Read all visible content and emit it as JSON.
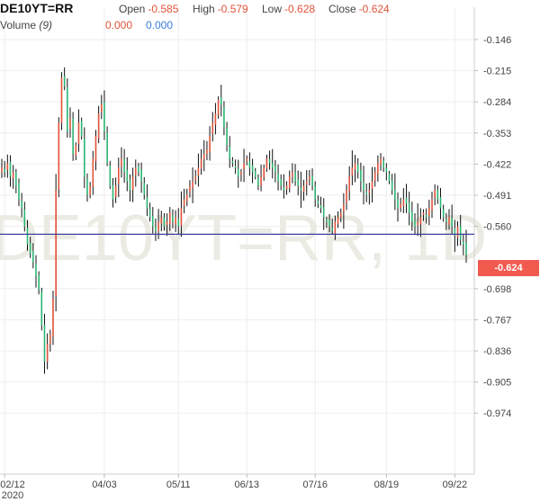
{
  "header": {
    "symbol": "DE10YT=RR",
    "open_label": "Open",
    "open_value": "-0.585",
    "high_label": "High",
    "high_value": "-0.579",
    "low_label": "Low",
    "low_value": "-0.628",
    "close_label": "Close",
    "close_value": "-0.624",
    "volume_label": "Volume",
    "volume_period": "(9)",
    "volume_value_1": "0.000",
    "volume_value_2": "0.000"
  },
  "watermark": "DE10YT=RR, 1D",
  "last_price_label": "-0.624",
  "colors": {
    "up": "#2bb673",
    "down": "#e0533a",
    "bar": "#111111",
    "last_line": "#3c3fa0",
    "tag": "#f05a4f"
  },
  "chart_data": {
    "type": "ohlc",
    "title": "",
    "xlabel": "",
    "ylabel": "",
    "y_ticks": [
      "-0.146",
      "-0.215",
      "-0.284",
      "-0.353",
      "-0.422",
      "-0.491",
      "-0.560",
      "-0.698",
      "-0.767",
      "-0.836",
      "-0.905",
      "-0.974"
    ],
    "ylim": [
      -1.035,
      -0.118
    ],
    "x_ticks": [
      {
        "label": "02/12",
        "sub": "2020",
        "index": 1
      },
      {
        "label": "04/03",
        "index": 36
      },
      {
        "label": "05/11",
        "index": 62
      },
      {
        "label": "06/13",
        "index": 86
      },
      {
        "label": "07/16",
        "index": 110
      },
      {
        "label": "08/19",
        "index": 135
      },
      {
        "label": "09/22",
        "index": 159
      }
    ],
    "last_price": -0.624,
    "closes": [
      -0.43,
      -0.44,
      -0.42,
      -0.45,
      -0.44,
      -0.47,
      -0.5,
      -0.52,
      -0.56,
      -0.6,
      -0.62,
      -0.64,
      -0.67,
      -0.7,
      -0.78,
      -0.86,
      -0.82,
      -0.8,
      -0.72,
      -0.48,
      -0.33,
      -0.23,
      -0.25,
      -0.35,
      -0.32,
      -0.4,
      -0.38,
      -0.33,
      -0.36,
      -0.45,
      -0.49,
      -0.47,
      -0.41,
      -0.36,
      -0.31,
      -0.29,
      -0.35,
      -0.42,
      -0.47,
      -0.5,
      -0.47,
      -0.43,
      -0.41,
      -0.44,
      -0.46,
      -0.48,
      -0.45,
      -0.43,
      -0.44,
      -0.46,
      -0.49,
      -0.52,
      -0.54,
      -0.56,
      -0.57,
      -0.55,
      -0.54,
      -0.56,
      -0.55,
      -0.53,
      -0.55,
      -0.54,
      -0.56,
      -0.52,
      -0.5,
      -0.49,
      -0.47,
      -0.46,
      -0.45,
      -0.43,
      -0.41,
      -0.4,
      -0.39,
      -0.36,
      -0.33,
      -0.31,
      -0.28,
      -0.29,
      -0.34,
      -0.38,
      -0.41,
      -0.42,
      -0.43,
      -0.45,
      -0.44,
      -0.42,
      -0.41,
      -0.43,
      -0.44,
      -0.45,
      -0.47,
      -0.45,
      -0.43,
      -0.41,
      -0.42,
      -0.43,
      -0.44,
      -0.46,
      -0.47,
      -0.48,
      -0.47,
      -0.45,
      -0.44,
      -0.46,
      -0.47,
      -0.48,
      -0.47,
      -0.46,
      -0.45,
      -0.47,
      -0.5,
      -0.51,
      -0.52,
      -0.54,
      -0.55,
      -0.56,
      -0.57,
      -0.55,
      -0.54,
      -0.53,
      -0.51,
      -0.48,
      -0.45,
      -0.43,
      -0.42,
      -0.44,
      -0.46,
      -0.48,
      -0.49,
      -0.48,
      -0.46,
      -0.44,
      -0.42,
      -0.41,
      -0.43,
      -0.44,
      -0.46,
      -0.48,
      -0.5,
      -0.52,
      -0.51,
      -0.5,
      -0.51,
      -0.53,
      -0.55,
      -0.56,
      -0.55,
      -0.54,
      -0.53,
      -0.54,
      -0.52,
      -0.5,
      -0.48,
      -0.5,
      -0.52,
      -0.54,
      -0.55,
      -0.54,
      -0.56,
      -0.58,
      -0.56,
      -0.59,
      -0.6,
      -0.624
    ]
  }
}
